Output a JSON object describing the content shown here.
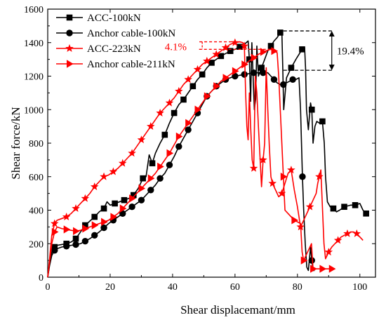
{
  "chart_data": {
    "type": "line",
    "title": "",
    "xlabel": "Shear displacemant/mm",
    "ylabel": "Shear force/kN",
    "xlim": [
      0,
      105
    ],
    "ylim": [
      0,
      1600
    ],
    "xticks": [
      0,
      20,
      40,
      60,
      80,
      100
    ],
    "yticks": [
      0,
      200,
      400,
      600,
      800,
      1000,
      1200,
      1400,
      1600
    ],
    "grid": false,
    "legend_position": "top-left",
    "series": [
      {
        "name": "ACC-100kN",
        "color": "#000000",
        "marker": "square",
        "x": [
          0,
          0.6,
          1.3,
          2.2,
          3.0,
          4.5,
          6.0,
          7.5,
          9.0,
          10.5,
          12.0,
          13.5,
          15.0,
          16.5,
          18.0,
          19.0,
          20.0,
          21.5,
          23.0,
          24.5,
          26.0,
          27.5,
          29.0,
          30.5,
          31.5,
          32.5,
          33.5,
          34.5,
          36.0,
          37.5,
          39.0,
          40.5,
          42.0,
          43.5,
          45.0,
          46.5,
          48.0,
          49.5,
          51.0,
          52.5,
          54.0,
          55.5,
          57.0,
          58.5,
          60.0,
          61.5,
          63.0,
          64.2,
          64.6,
          65.0,
          65.4,
          66.2,
          66.6,
          67.0,
          67.5,
          68.5,
          69.5,
          70.5,
          71.5,
          72.5,
          73.5,
          74.5,
          75.0,
          75.3,
          75.6,
          76.5,
          78.0,
          79.5,
          80.5,
          81.5,
          82.3,
          82.6,
          82.9,
          83.5,
          84.2,
          84.6,
          85.0,
          85.6,
          86.2,
          87.0,
          88.0,
          88.6,
          89.0,
          89.6,
          90.5,
          91.5,
          92.5,
          93.5,
          95.0,
          97.0,
          98.5,
          100.0,
          101.0,
          102.0
        ],
        "y": [
          0,
          80,
          150,
          180,
          190,
          195,
          200,
          210,
          230,
          270,
          310,
          335,
          360,
          390,
          410,
          450,
          430,
          440,
          450,
          460,
          470,
          490,
          530,
          590,
          600,
          730,
          680,
          740,
          800,
          850,
          920,
          980,
          1030,
          1060,
          1100,
          1140,
          1180,
          1210,
          1250,
          1280,
          1300,
          1320,
          1335,
          1350,
          1360,
          1375,
          1390,
          1410,
          1300,
          1050,
          1400,
          1000,
          1060,
          1380,
          1200,
          1250,
          1300,
          1350,
          1380,
          1410,
          1430,
          1460,
          1470,
          1250,
          1000,
          1190,
          1250,
          1300,
          1330,
          1360,
          1370,
          1250,
          1000,
          880,
          1040,
          1000,
          800,
          900,
          930,
          920,
          930,
          800,
          600,
          450,
          420,
          410,
          390,
          400,
          420,
          430,
          430,
          440,
          400,
          380
        ]
      },
      {
        "name": "Anchor cable-100kN",
        "color": "#000000",
        "marker": "circle",
        "x": [
          0,
          0.6,
          1.3,
          2.2,
          3.0,
          4.5,
          6.0,
          7.5,
          9.0,
          10.5,
          12.0,
          13.5,
          15.0,
          16.5,
          18.0,
          19.5,
          21.0,
          22.5,
          24.0,
          25.5,
          27.0,
          28.5,
          30.0,
          31.5,
          33.0,
          34.5,
          36.0,
          37.5,
          39.0,
          40.5,
          42.0,
          43.5,
          45.0,
          46.5,
          48.0,
          49.5,
          51.0,
          52.5,
          54.0,
          55.5,
          57.0,
          58.5,
          60.0,
          61.5,
          63.0,
          64.5,
          66.0,
          67.5,
          69.0,
          70.5,
          71.5,
          72.5,
          73.5,
          74.5,
          75.5,
          76.5,
          77.5,
          78.5,
          79.5,
          80.5,
          81.0,
          81.3,
          81.6,
          82.0,
          82.5,
          83.0,
          83.5,
          84.2,
          84.6,
          85.0,
          85.5
        ],
        "y": [
          0,
          70,
          130,
          160,
          170,
          180,
          185,
          190,
          195,
          200,
          215,
          230,
          250,
          270,
          295,
          320,
          340,
          360,
          380,
          400,
          420,
          440,
          460,
          490,
          520,
          550,
          590,
          620,
          670,
          720,
          780,
          830,
          880,
          930,
          980,
          1030,
          1080,
          1110,
          1140,
          1160,
          1180,
          1190,
          1200,
          1205,
          1210,
          1215,
          1220,
          1220,
          1220,
          1220,
          1200,
          1180,
          1160,
          1150,
          1150,
          1160,
          1170,
          1180,
          1180,
          1190,
          1000,
          800,
          600,
          400,
          200,
          60,
          40,
          180,
          100,
          40,
          40
        ]
      },
      {
        "name": "ACC-223kN",
        "color": "#ff0000",
        "marker": "star",
        "x": [
          0,
          0.6,
          1.3,
          2.2,
          3.0,
          4.5,
          6.0,
          7.5,
          9.0,
          10.5,
          12.0,
          13.5,
          15.0,
          16.5,
          18.0,
          19.5,
          21.0,
          22.5,
          24.0,
          25.5,
          27.0,
          28.5,
          30.0,
          31.5,
          33.0,
          34.5,
          36.0,
          37.5,
          39.0,
          40.5,
          42.0,
          43.5,
          45.0,
          46.5,
          48.0,
          49.5,
          51.0,
          52.5,
          54.0,
          55.5,
          57.0,
          58.5,
          60.0,
          61.5,
          62.5,
          63.0,
          63.4,
          63.8,
          64.2,
          64.6,
          65.0,
          65.5,
          66.0,
          66.5,
          67.0,
          67.5,
          68.0,
          68.5,
          69.0,
          69.5,
          70.0,
          70.5,
          71.0,
          71.5,
          72.0,
          73.0,
          74.0,
          75.0,
          76.0,
          77.0,
          78.0,
          79.0,
          80.0,
          81.0,
          82.0,
          83.0,
          84.0,
          85.0,
          86.0,
          86.5,
          87.0,
          87.5,
          88.0,
          88.5,
          89.0,
          90.0,
          91.0,
          92.0,
          93.0,
          94.0,
          95.0,
          96.0,
          97.0,
          98.0,
          99.0,
          100.0,
          101.0
        ],
        "y": [
          0,
          110,
          250,
          320,
          340,
          350,
          360,
          380,
          410,
          440,
          470,
          500,
          540,
          570,
          600,
          610,
          630,
          650,
          680,
          710,
          740,
          780,
          820,
          860,
          900,
          940,
          980,
          1010,
          1040,
          1070,
          1110,
          1150,
          1180,
          1210,
          1240,
          1270,
          1290,
          1310,
          1330,
          1350,
          1370,
          1390,
          1400,
          1405,
          1400,
          1380,
          1100,
          900,
          820,
          1100,
          900,
          700,
          650,
          1200,
          1100,
          900,
          720,
          540,
          700,
          800,
          1250,
          1000,
          780,
          600,
          560,
          520,
          480,
          500,
          560,
          620,
          640,
          520,
          420,
          300,
          340,
          380,
          420,
          460,
          500,
          560,
          600,
          640,
          420,
          200,
          110,
          150,
          180,
          200,
          220,
          240,
          250,
          260,
          270,
          270,
          260,
          240,
          220
        ]
      },
      {
        "name": "Anchor cable-211kN",
        "color": "#ff0000",
        "marker": "triangle-right",
        "x": [
          0,
          0.6,
          1.3,
          2.2,
          3.0,
          4.5,
          6.0,
          7.5,
          9.0,
          10.5,
          12.0,
          13.5,
          15.0,
          16.5,
          18.0,
          19.5,
          21.0,
          22.5,
          24.0,
          25.5,
          27.0,
          28.5,
          30.0,
          31.5,
          33.0,
          34.5,
          36.0,
          37.5,
          39.0,
          40.5,
          42.0,
          43.5,
          45.0,
          46.5,
          48.0,
          49.5,
          51.0,
          52.5,
          54.0,
          55.5,
          57.0,
          58.5,
          60.0,
          61.5,
          63.0,
          64.5,
          66.0,
          67.5,
          69.0,
          70.5,
          71.5,
          72.5,
          73.5,
          74.0,
          74.5,
          75.0,
          75.5,
          76.0,
          77.0,
          78.0,
          79.0,
          80.0,
          81.0,
          81.5,
          82.0,
          82.5,
          83.0,
          83.5,
          84.0,
          84.5,
          85.0,
          86.0,
          87.0,
          88.0,
          89.0,
          90.0,
          91.0,
          92.0
        ],
        "y": [
          0,
          90,
          200,
          270,
          300,
          290,
          285,
          280,
          275,
          280,
          290,
          300,
          310,
          320,
          330,
          340,
          360,
          380,
          410,
          440,
          470,
          500,
          530,
          560,
          590,
          620,
          660,
          700,
          740,
          790,
          840,
          880,
          920,
          960,
          1000,
          1040,
          1080,
          1110,
          1140,
          1170,
          1190,
          1210,
          1230,
          1250,
          1270,
          1290,
          1310,
          1330,
          1345,
          1355,
          1360,
          1350,
          1340,
          1200,
          1000,
          800,
          600,
          400,
          380,
          360,
          340,
          330,
          320,
          150,
          100,
          120,
          140,
          160,
          180,
          200,
          50,
          50,
          50,
          50,
          50,
          50,
          50,
          50
        ]
      }
    ],
    "annotations": [
      {
        "text": "4.1%",
        "color": "#ff0000"
      },
      {
        "text": "19.4%",
        "color": "#000000"
      }
    ]
  }
}
